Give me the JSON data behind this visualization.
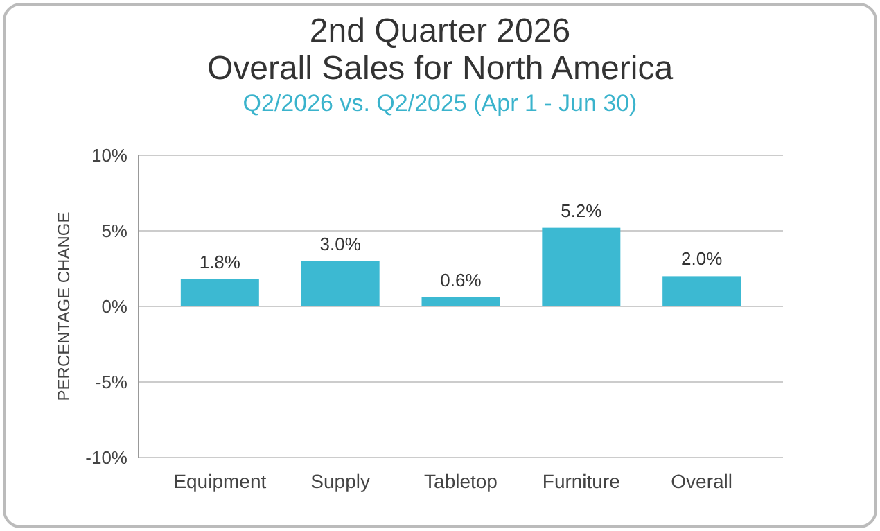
{
  "chart_data": {
    "type": "bar",
    "title": "2nd Quarter 2026\nOverall Sales for North America",
    "subtitle": "Q2/2026 vs. Q2/2025 (Apr 1 - Jun 30)",
    "ylabel": "PERCENTAGE CHANGE",
    "categories": [
      "Equipment",
      "Supply",
      "Tabletop",
      "Furniture",
      "Overall"
    ],
    "values": [
      1.8,
      3.0,
      0.6,
      5.2,
      2.0
    ],
    "value_labels": [
      "1.8%",
      "3.0%",
      "0.6%",
      "5.2%",
      "2.0%"
    ],
    "color": "#3cb9d2",
    "ylim": [
      -10,
      10
    ],
    "yticks": [
      {
        "value": -10,
        "label": "-10%"
      },
      {
        "value": -5,
        "label": "-5%"
      },
      {
        "value": 0,
        "label": "0%"
      },
      {
        "value": 5,
        "label": "5%"
      },
      {
        "value": 10,
        "label": "10%"
      }
    ],
    "grid": "y"
  }
}
